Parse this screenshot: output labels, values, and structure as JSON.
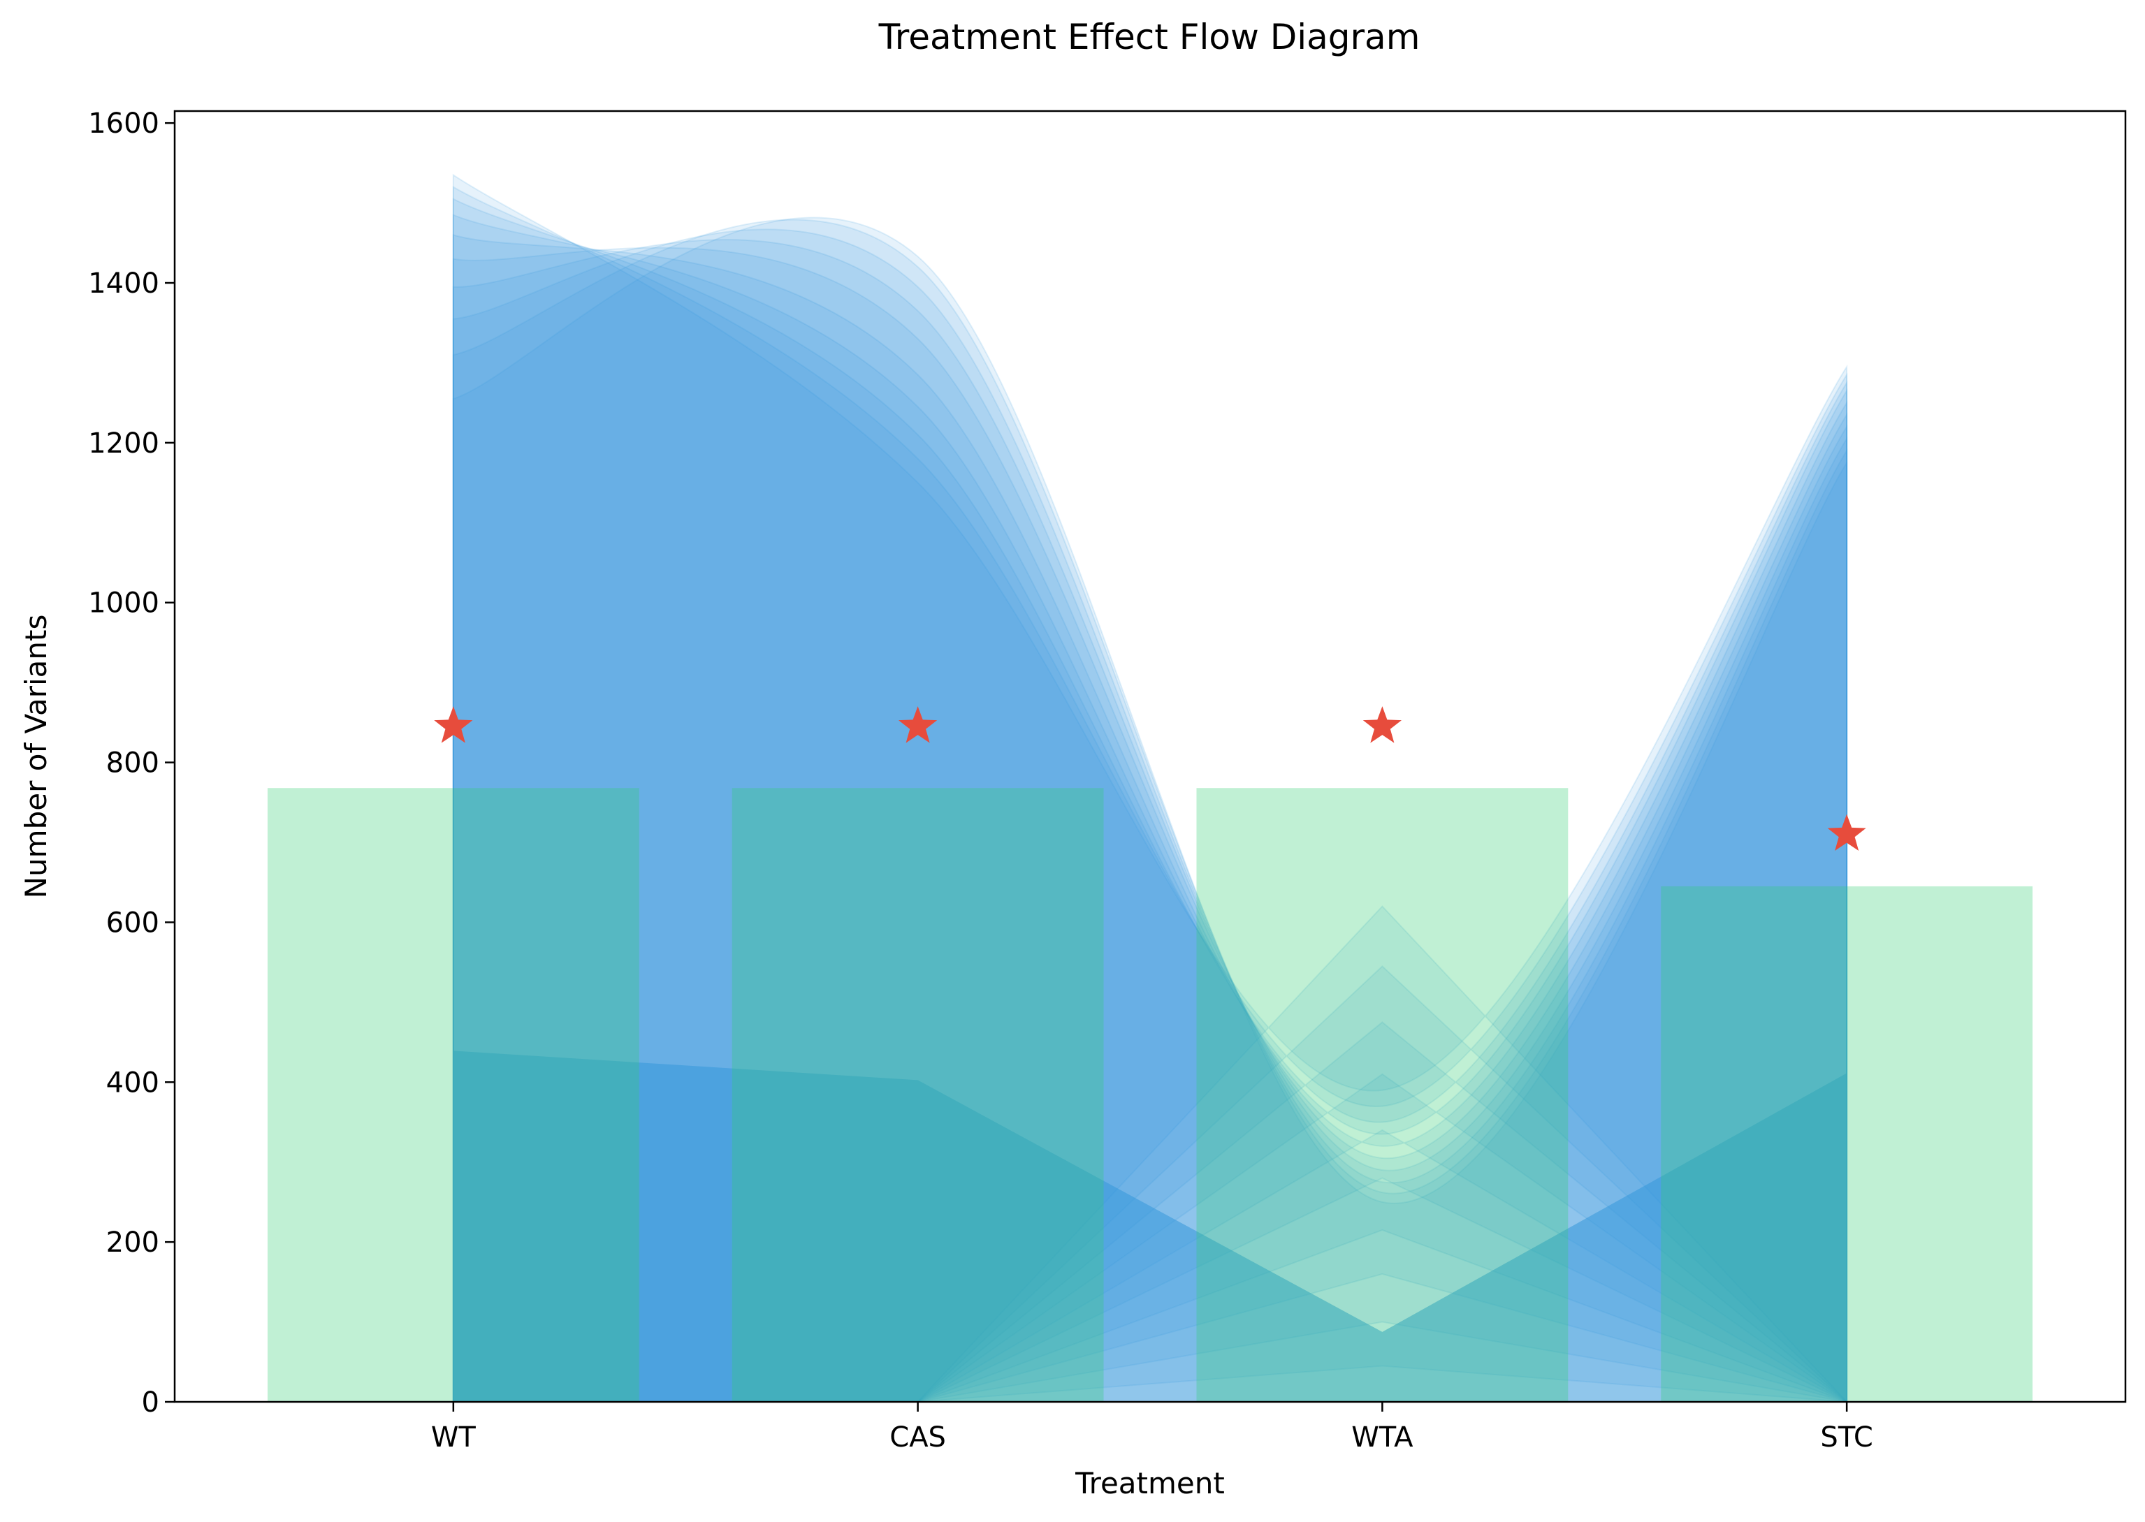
{
  "chart_data": {
    "type": "area",
    "title": "Treatment Effect Flow Diagram",
    "xlabel": "Treatment",
    "ylabel": "Number of Variants",
    "categories": [
      "WT",
      "CAS",
      "WTA",
      "STC"
    ],
    "ylim": [
      0,
      1600
    ],
    "yticks": [
      0,
      200,
      400,
      600,
      800,
      1000,
      1200,
      1400,
      1600
    ],
    "grid": false,
    "legend": "none",
    "flow": {
      "name": "",
      "color": "#3498db",
      "layers_upper": [
        [
          1535,
          1150,
          390,
          1295
        ],
        [
          1520,
          1180,
          370,
          1285
        ],
        [
          1505,
          1210,
          350,
          1275
        ],
        [
          1485,
          1245,
          335,
          1265
        ],
        [
          1460,
          1285,
          320,
          1250
        ],
        [
          1430,
          1330,
          305,
          1235
        ],
        [
          1395,
          1365,
          290,
          1220
        ],
        [
          1355,
          1395,
          275,
          1205
        ],
        [
          1310,
          1420,
          262,
          1190
        ],
        [
          1255,
          1433,
          250,
          1175
        ]
      ],
      "layers_lower": [
        [
          0,
          0,
          620,
          0
        ],
        [
          0,
          0,
          545,
          0
        ],
        [
          0,
          0,
          475,
          0
        ],
        [
          0,
          0,
          410,
          0
        ],
        [
          0,
          0,
          340,
          0
        ],
        [
          0,
          0,
          280,
          0
        ],
        [
          0,
          0,
          215,
          0
        ],
        [
          0,
          0,
          160,
          0
        ],
        [
          0,
          0,
          100,
          0
        ],
        [
          0,
          0,
          45,
          0
        ]
      ]
    },
    "bars": {
      "name": "",
      "color": "#2ecc71",
      "opacity": 0.3,
      "values": [
        768,
        768,
        768,
        645
      ]
    },
    "markers": {
      "name": "",
      "color": "#e74c3c",
      "shape": "star",
      "values": [
        845,
        845,
        845,
        710
      ]
    }
  }
}
